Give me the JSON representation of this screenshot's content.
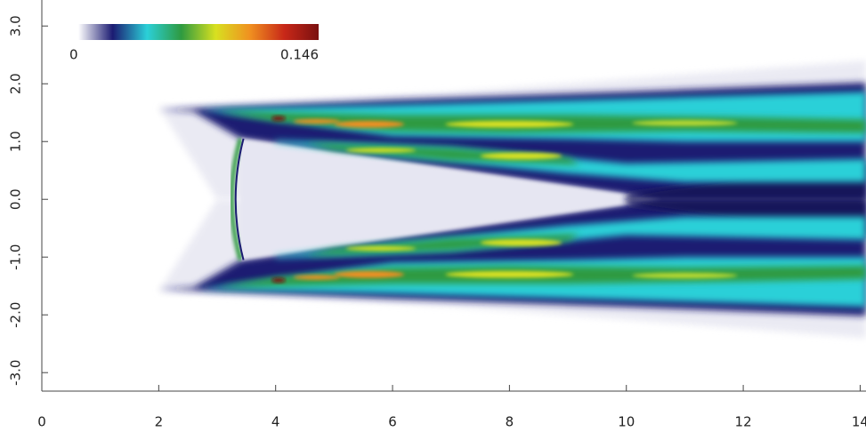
{
  "chart_data": {
    "type": "contour",
    "xlim": [
      0,
      14.1
    ],
    "ylim": [
      -3.32,
      3.45
    ],
    "xticks": [
      0,
      2,
      4,
      6,
      8,
      10,
      12,
      14
    ],
    "yticks": [
      {
        "value": 3,
        "label": "3.0"
      },
      {
        "value": 2,
        "label": "2.0"
      },
      {
        "value": 1,
        "label": "1.0"
      },
      {
        "value": 0,
        "label": "0.0"
      },
      {
        "value": -1,
        "label": "-1.0"
      },
      {
        "value": -2,
        "label": "-2.0"
      },
      {
        "value": -3,
        "label": "-3.0"
      }
    ],
    "clim": [
      0,
      0.146
    ],
    "colormap": [
      "#ffffff",
      "#1b1b72",
      "#2bd0d8",
      "#2e9a40",
      "#d8e020",
      "#f09020",
      "#c82818",
      "#7a1010"
    ]
  }
}
